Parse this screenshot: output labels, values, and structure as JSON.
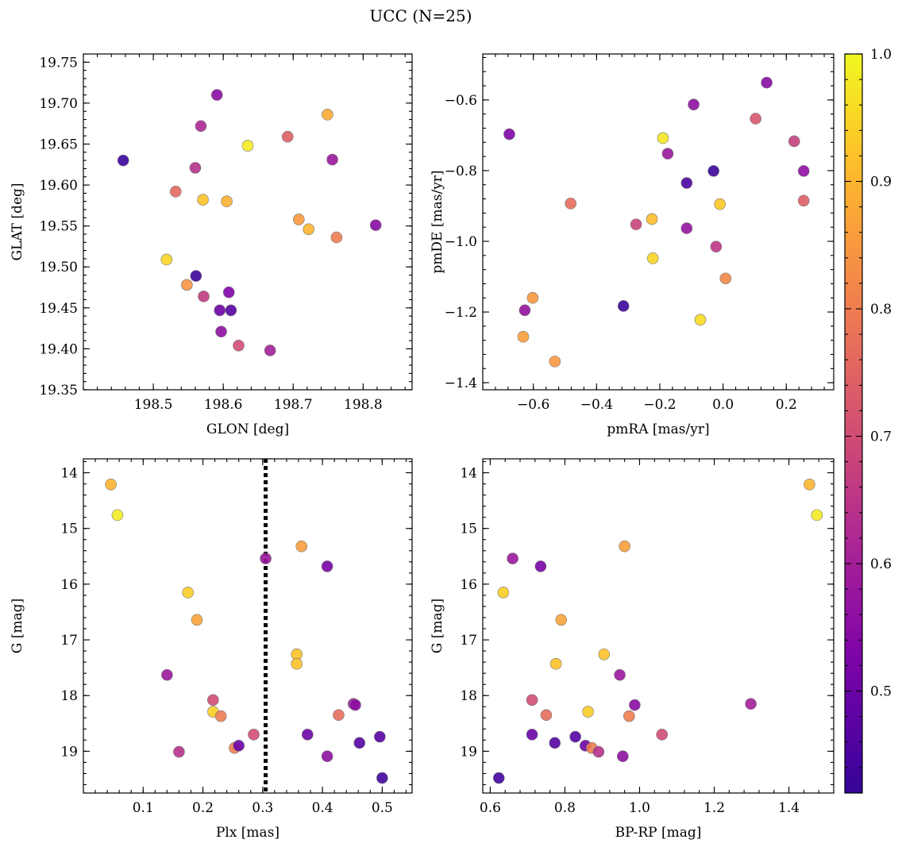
{
  "figure": {
    "title": "UCC (N=25)"
  },
  "colorbar": {
    "min": 0.42,
    "max": 1.0,
    "ticks": [
      0.5,
      0.6,
      0.7,
      0.8,
      0.9,
      1.0
    ],
    "tick_labels": [
      "0.5",
      "0.6",
      "0.7",
      "0.8",
      "0.9",
      "1.0"
    ],
    "colormap": "plasma"
  },
  "chart_data": [
    {
      "type": "scatter",
      "xlabel": "GLON [deg]",
      "ylabel": "GLAT [deg]",
      "xlim": [
        198.4,
        198.87
      ],
      "ylim": [
        19.35,
        19.76
      ],
      "xticks": [
        198.5,
        198.6,
        198.7,
        198.8
      ],
      "xtick_labels": [
        "198.5",
        "198.6",
        "198.7",
        "198.8"
      ],
      "yticks": [
        19.35,
        19.4,
        19.45,
        19.5,
        19.55,
        19.6,
        19.65,
        19.7,
        19.75
      ],
      "ytick_labels": [
        "19.35",
        "19.40",
        "19.45",
        "19.50",
        "19.55",
        "19.60",
        "19.65",
        "19.70",
        "19.75"
      ],
      "y_inverted": false,
      "points": [
        {
          "x": 198.457,
          "y": 19.63,
          "c": 0.43
        },
        {
          "x": 198.591,
          "y": 19.71,
          "c": 0.55
        },
        {
          "x": 198.568,
          "y": 19.672,
          "c": 0.62
        },
        {
          "x": 198.749,
          "y": 19.686,
          "c": 0.88
        },
        {
          "x": 198.635,
          "y": 19.648,
          "c": 0.98
        },
        {
          "x": 198.692,
          "y": 19.659,
          "c": 0.74
        },
        {
          "x": 198.56,
          "y": 19.621,
          "c": 0.64
        },
        {
          "x": 198.756,
          "y": 19.631,
          "c": 0.58
        },
        {
          "x": 198.532,
          "y": 19.592,
          "c": 0.76
        },
        {
          "x": 198.571,
          "y": 19.582,
          "c": 0.92
        },
        {
          "x": 198.605,
          "y": 19.58,
          "c": 0.89
        },
        {
          "x": 198.708,
          "y": 19.558,
          "c": 0.85
        },
        {
          "x": 198.722,
          "y": 19.546,
          "c": 0.9
        },
        {
          "x": 198.762,
          "y": 19.536,
          "c": 0.8
        },
        {
          "x": 198.818,
          "y": 19.551,
          "c": 0.55
        },
        {
          "x": 198.519,
          "y": 19.509,
          "c": 0.95
        },
        {
          "x": 198.561,
          "y": 19.489,
          "c": 0.43
        },
        {
          "x": 198.548,
          "y": 19.478,
          "c": 0.84
        },
        {
          "x": 198.572,
          "y": 19.464,
          "c": 0.66
        },
        {
          "x": 198.608,
          "y": 19.469,
          "c": 0.53
        },
        {
          "x": 198.595,
          "y": 19.447,
          "c": 0.5
        },
        {
          "x": 198.611,
          "y": 19.447,
          "c": 0.47
        },
        {
          "x": 198.597,
          "y": 19.421,
          "c": 0.56
        },
        {
          "x": 198.622,
          "y": 19.404,
          "c": 0.7
        },
        {
          "x": 198.667,
          "y": 19.398,
          "c": 0.6
        }
      ]
    },
    {
      "type": "scatter",
      "xlabel": "pmRA [mas/yr]",
      "ylabel": "pmDE [mas/yr]",
      "xlim": [
        -0.76,
        0.35
      ],
      "ylim": [
        -1.42,
        -0.47
      ],
      "xticks": [
        -0.6,
        -0.4,
        -0.2,
        0.0,
        0.2
      ],
      "xtick_labels": [
        "−0.6",
        "−0.4",
        "−0.2",
        "0.0",
        "0.2"
      ],
      "yticks": [
        -1.4,
        -1.2,
        -1.0,
        -0.8,
        -0.6
      ],
      "ytick_labels": [
        "−1.4",
        "−1.2",
        "−1.0",
        "−0.8",
        "−0.6"
      ],
      "y_inverted": false,
      "points": [
        {
          "x": 0.138,
          "y": -0.551,
          "c": 0.55
        },
        {
          "x": -0.093,
          "y": -0.613,
          "c": 0.56
        },
        {
          "x": -0.676,
          "y": -0.697,
          "c": 0.53
        },
        {
          "x": 0.103,
          "y": -0.653,
          "c": 0.72
        },
        {
          "x": -0.19,
          "y": -0.708,
          "c": 0.97
        },
        {
          "x": 0.225,
          "y": -0.717,
          "c": 0.67
        },
        {
          "x": -0.175,
          "y": -0.752,
          "c": 0.58
        },
        {
          "x": -0.03,
          "y": -0.801,
          "c": 0.43
        },
        {
          "x": 0.255,
          "y": -0.801,
          "c": 0.56
        },
        {
          "x": -0.115,
          "y": -0.835,
          "c": 0.45
        },
        {
          "x": 0.255,
          "y": -0.885,
          "c": 0.74
        },
        {
          "x": -0.482,
          "y": -0.893,
          "c": 0.77
        },
        {
          "x": -0.01,
          "y": -0.895,
          "c": 0.93
        },
        {
          "x": -0.275,
          "y": -0.952,
          "c": 0.68
        },
        {
          "x": -0.225,
          "y": -0.937,
          "c": 0.91
        },
        {
          "x": -0.115,
          "y": -0.963,
          "c": 0.57
        },
        {
          "x": -0.022,
          "y": -1.015,
          "c": 0.65
        },
        {
          "x": -0.222,
          "y": -1.048,
          "c": 0.95
        },
        {
          "x": 0.008,
          "y": -1.105,
          "c": 0.82
        },
        {
          "x": -0.602,
          "y": -1.16,
          "c": 0.85
        },
        {
          "x": -0.627,
          "y": -1.195,
          "c": 0.57
        },
        {
          "x": -0.315,
          "y": -1.183,
          "c": 0.43
        },
        {
          "x": -0.072,
          "y": -1.222,
          "c": 0.96
        },
        {
          "x": -0.632,
          "y": -1.27,
          "c": 0.86
        },
        {
          "x": -0.532,
          "y": -1.34,
          "c": 0.85
        }
      ]
    },
    {
      "type": "scatter",
      "xlabel": "Plx [mas]",
      "ylabel": "G [mag]",
      "xlim": [
        0.0,
        0.55
      ],
      "ylim": [
        13.75,
        19.75
      ],
      "xticks": [
        0.1,
        0.2,
        0.3,
        0.4,
        0.5
      ],
      "xtick_labels": [
        "0.1",
        "0.2",
        "0.3",
        "0.4",
        "0.5"
      ],
      "yticks": [
        14,
        15,
        16,
        17,
        18,
        19
      ],
      "ytick_labels": [
        "14",
        "15",
        "16",
        "17",
        "18",
        "19"
      ],
      "y_inverted": true,
      "vline": {
        "x": 0.305,
        "style": "dotted",
        "color": "#000000"
      },
      "points": [
        {
          "x": 0.046,
          "y": 14.21,
          "c": 0.9
        },
        {
          "x": 0.057,
          "y": 14.76,
          "c": 0.98
        },
        {
          "x": 0.175,
          "y": 16.15,
          "c": 0.94
        },
        {
          "x": 0.19,
          "y": 16.64,
          "c": 0.87
        },
        {
          "x": 0.14,
          "y": 17.63,
          "c": 0.58
        },
        {
          "x": 0.217,
          "y": 18.08,
          "c": 0.7
        },
        {
          "x": 0.217,
          "y": 18.29,
          "c": 0.94
        },
        {
          "x": 0.23,
          "y": 18.37,
          "c": 0.8
        },
        {
          "x": 0.16,
          "y": 19.01,
          "c": 0.64
        },
        {
          "x": 0.253,
          "y": 18.94,
          "c": 0.8
        },
        {
          "x": 0.26,
          "y": 18.9,
          "c": 0.5
        },
        {
          "x": 0.285,
          "y": 18.7,
          "c": 0.7
        },
        {
          "x": 0.305,
          "y": 15.54,
          "c": 0.58
        },
        {
          "x": 0.365,
          "y": 15.32,
          "c": 0.86
        },
        {
          "x": 0.357,
          "y": 17.26,
          "c": 0.92
        },
        {
          "x": 0.357,
          "y": 17.43,
          "c": 0.92
        },
        {
          "x": 0.408,
          "y": 15.68,
          "c": 0.52
        },
        {
          "x": 0.375,
          "y": 18.7,
          "c": 0.5
        },
        {
          "x": 0.408,
          "y": 19.09,
          "c": 0.56
        },
        {
          "x": 0.427,
          "y": 18.35,
          "c": 0.77
        },
        {
          "x": 0.452,
          "y": 18.15,
          "c": 0.6
        },
        {
          "x": 0.455,
          "y": 18.17,
          "c": 0.55
        },
        {
          "x": 0.462,
          "y": 18.85,
          "c": 0.47
        },
        {
          "x": 0.496,
          "y": 18.74,
          "c": 0.47
        },
        {
          "x": 0.5,
          "y": 19.48,
          "c": 0.44
        }
      ]
    },
    {
      "type": "scatter",
      "xlabel": "BP-RP [mag]",
      "ylabel": "G [mag]",
      "xlim": [
        0.58,
        1.52
      ],
      "ylim": [
        13.75,
        19.75
      ],
      "xticks": [
        0.6,
        0.8,
        1.0,
        1.2,
        1.4
      ],
      "xtick_labels": [
        "0.6",
        "0.8",
        "1.0",
        "1.2",
        "1.4"
      ],
      "yticks": [
        14,
        15,
        16,
        17,
        18,
        19
      ],
      "ytick_labels": [
        "14",
        "15",
        "16",
        "17",
        "18",
        "19"
      ],
      "y_inverted": true,
      "points": [
        {
          "x": 1.455,
          "y": 14.21,
          "c": 0.9
        },
        {
          "x": 1.475,
          "y": 14.76,
          "c": 0.98
        },
        {
          "x": 0.635,
          "y": 16.15,
          "c": 0.94
        },
        {
          "x": 0.66,
          "y": 15.54,
          "c": 0.58
        },
        {
          "x": 0.735,
          "y": 15.68,
          "c": 0.52
        },
        {
          "x": 0.96,
          "y": 15.32,
          "c": 0.86
        },
        {
          "x": 0.79,
          "y": 16.64,
          "c": 0.87
        },
        {
          "x": 0.905,
          "y": 17.26,
          "c": 0.92
        },
        {
          "x": 0.776,
          "y": 17.43,
          "c": 0.92
        },
        {
          "x": 0.947,
          "y": 17.63,
          "c": 0.58
        },
        {
          "x": 0.712,
          "y": 18.08,
          "c": 0.7
        },
        {
          "x": 0.75,
          "y": 18.35,
          "c": 0.77
        },
        {
          "x": 0.862,
          "y": 18.29,
          "c": 0.94
        },
        {
          "x": 0.987,
          "y": 18.17,
          "c": 0.55
        },
        {
          "x": 1.298,
          "y": 18.15,
          "c": 0.6
        },
        {
          "x": 0.712,
          "y": 18.7,
          "c": 0.5
        },
        {
          "x": 0.773,
          "y": 18.85,
          "c": 0.47
        },
        {
          "x": 0.828,
          "y": 18.74,
          "c": 0.47
        },
        {
          "x": 0.855,
          "y": 18.9,
          "c": 0.5
        },
        {
          "x": 0.872,
          "y": 18.94,
          "c": 0.8
        },
        {
          "x": 0.89,
          "y": 19.01,
          "c": 0.64
        },
        {
          "x": 0.955,
          "y": 19.09,
          "c": 0.56
        },
        {
          "x": 0.972,
          "y": 18.37,
          "c": 0.8
        },
        {
          "x": 1.06,
          "y": 18.7,
          "c": 0.7
        },
        {
          "x": 0.623,
          "y": 19.48,
          "c": 0.44
        }
      ]
    }
  ]
}
